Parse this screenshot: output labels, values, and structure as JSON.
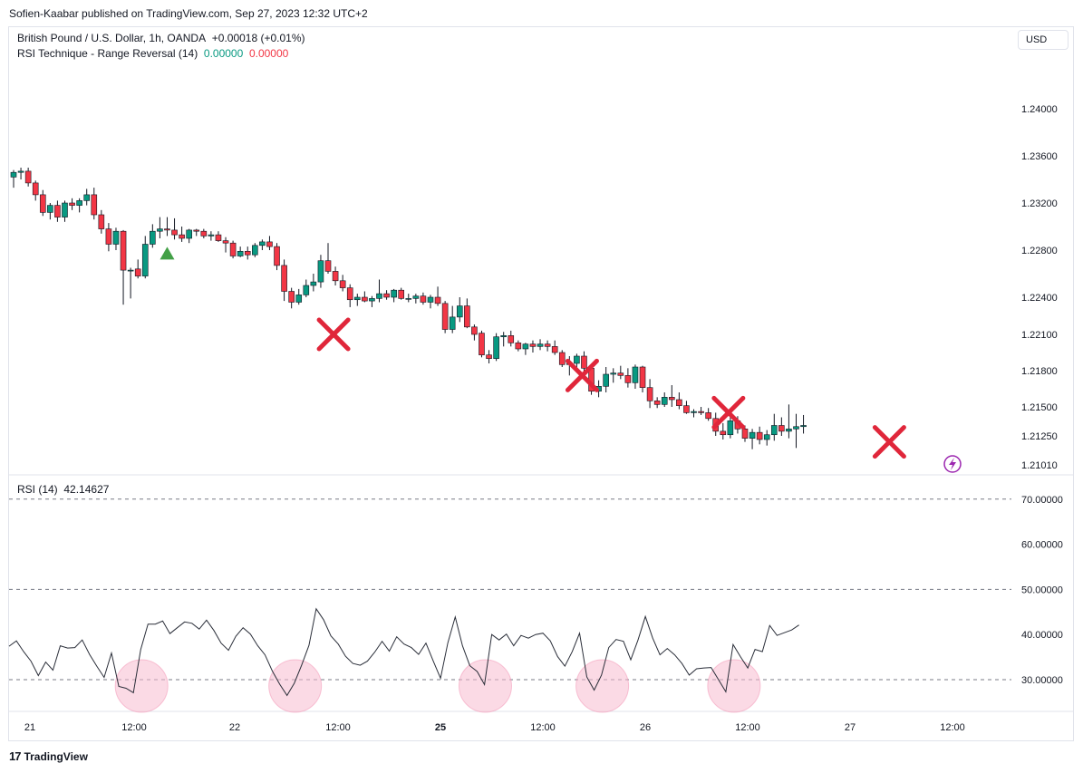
{
  "header": {
    "published_by": "Sofien-Kaabar published on TradingView.com, Sep 27, 2023 12:32 UTC+2"
  },
  "legend": {
    "symbol_line": "British Pound / U.S. Dollar, 1h, OANDA",
    "change": "+0.00018 (+0.01%)",
    "indicator_name": "RSI Technique - Range Reversal (14)",
    "indicator_val1": "0.00000",
    "indicator_val2": "0.00000",
    "rsi_label": "RSI (14)",
    "rsi_value": "42.14627"
  },
  "currency_button": "USD",
  "footer": {
    "brand_mark": "17",
    "brand_name": "TradingView"
  },
  "colors": {
    "up": "#089981",
    "down": "#f23645",
    "marker_x": "#e0263a",
    "marker_up": "#43a047",
    "rsi_line": "#2a2e39",
    "circle_fill": "#f8bbd0"
  },
  "chart_data": [
    {
      "type": "candlestick",
      "symbol": "GBPUSD",
      "timeframe": "1h",
      "y_axis_ticks": [
        "1.24000",
        "1.23600",
        "1.23200",
        "1.22800",
        "1.22400",
        "1.22100",
        "1.21800",
        "1.21500",
        "1.21250",
        "1.21010"
      ],
      "x_axis_ticks": [
        "21",
        "12:00",
        "22",
        "12:00",
        "25",
        "12:00",
        "26",
        "12:00",
        "27",
        "12:00"
      ],
      "candles": [
        [
          1.2342,
          1.2348,
          1.2333,
          1.2346
        ],
        [
          1.2346,
          1.235,
          1.234,
          1.2347
        ],
        [
          1.2347,
          1.235,
          1.2334,
          1.2337
        ],
        [
          1.2337,
          1.2339,
          1.2322,
          1.2327
        ],
        [
          1.2327,
          1.2331,
          1.2309,
          1.2312
        ],
        [
          1.2312,
          1.232,
          1.2306,
          1.2318
        ],
        [
          1.2318,
          1.2322,
          1.2304,
          1.2308
        ],
        [
          1.2308,
          1.2322,
          1.2304,
          1.232
        ],
        [
          1.232,
          1.2324,
          1.2314,
          1.2318
        ],
        [
          1.2318,
          1.2324,
          1.2312,
          1.2322
        ],
        [
          1.2322,
          1.2332,
          1.2318,
          1.2327
        ],
        [
          1.2327,
          1.2333,
          1.2306,
          1.231
        ],
        [
          1.231,
          1.2314,
          1.2294,
          1.2298
        ],
        [
          1.2298,
          1.2303,
          1.2279,
          1.2285
        ],
        [
          1.2285,
          1.2299,
          1.228,
          1.2296
        ],
        [
          1.2296,
          1.2297,
          1.2234,
          1.2263
        ],
        [
          1.2263,
          1.2265,
          1.2239,
          1.2263
        ],
        [
          1.2264,
          1.2272,
          1.2256,
          1.2258
        ],
        [
          1.2258,
          1.2292,
          1.2256,
          1.2285
        ],
        [
          1.2285,
          1.2302,
          1.2282,
          1.2296
        ],
        [
          1.2296,
          1.2308,
          1.229,
          1.2298
        ],
        [
          1.2298,
          1.2308,
          1.2292,
          1.2297
        ],
        [
          1.2297,
          1.2307,
          1.2289,
          1.2293
        ],
        [
          1.2293,
          1.23,
          1.2287,
          1.229
        ],
        [
          1.229,
          1.2298,
          1.2286,
          1.2297
        ],
        [
          1.2297,
          1.2298,
          1.2292,
          1.2296
        ],
        [
          1.2296,
          1.2298,
          1.229,
          1.2292
        ],
        [
          1.2292,
          1.2296,
          1.2288,
          1.2293
        ],
        [
          1.2293,
          1.2296,
          1.2287,
          1.2288
        ],
        [
          1.2288,
          1.2291,
          1.2278,
          1.2286
        ],
        [
          1.2286,
          1.2288,
          1.2273,
          1.2275
        ],
        [
          1.2275,
          1.2283,
          1.2274,
          1.2279
        ],
        [
          1.2279,
          1.2283,
          1.2272,
          1.2276
        ],
        [
          1.2276,
          1.2286,
          1.2274,
          1.2284
        ],
        [
          1.2284,
          1.2289,
          1.228,
          1.2287
        ],
        [
          1.2287,
          1.2292,
          1.228,
          1.2283
        ],
        [
          1.2283,
          1.2286,
          1.2263,
          1.2267
        ],
        [
          1.2267,
          1.2272,
          1.2237,
          1.2245
        ],
        [
          1.2245,
          1.2248,
          1.2231,
          1.2236
        ],
        [
          1.2236,
          1.2247,
          1.2234,
          1.2242
        ],
        [
          1.2242,
          1.2255,
          1.224,
          1.225
        ],
        [
          1.225,
          1.226,
          1.2245,
          1.2253
        ],
        [
          1.2253,
          1.2276,
          1.2248,
          1.2271
        ],
        [
          1.2271,
          1.2286,
          1.226,
          1.2262
        ],
        [
          1.2262,
          1.2266,
          1.225,
          1.2254
        ],
        [
          1.2254,
          1.2259,
          1.2245,
          1.2248
        ],
        [
          1.2248,
          1.2251,
          1.2232,
          1.2238
        ],
        [
          1.2238,
          1.2243,
          1.2233,
          1.224
        ],
        [
          1.224,
          1.2245,
          1.2236,
          1.2237
        ],
        [
          1.2237,
          1.2241,
          1.2232,
          1.2239
        ],
        [
          1.2239,
          1.2255,
          1.2236,
          1.2243
        ],
        [
          1.2243,
          1.2246,
          1.2238,
          1.224
        ],
        [
          1.224,
          1.2247,
          1.2236,
          1.2246
        ],
        [
          1.2246,
          1.2248,
          1.2238,
          1.2239
        ],
        [
          1.2239,
          1.2243,
          1.2236,
          1.2239
        ],
        [
          1.2239,
          1.2243,
          1.2235,
          1.2241
        ],
        [
          1.2241,
          1.2244,
          1.2234,
          1.2236
        ],
        [
          1.2236,
          1.2242,
          1.2231,
          1.224
        ],
        [
          1.224,
          1.2249,
          1.2233,
          1.2235
        ],
        [
          1.2235,
          1.2237,
          1.2211,
          1.2214
        ],
        [
          1.2214,
          1.2233,
          1.2211,
          1.2224
        ],
        [
          1.2224,
          1.224,
          1.222,
          1.2233
        ],
        [
          1.2233,
          1.2239,
          1.2215,
          1.2216
        ],
        [
          1.2216,
          1.2218,
          1.2205,
          1.221
        ],
        [
          1.2211,
          1.2213,
          1.2191,
          1.2193
        ],
        [
          1.2193,
          1.2197,
          1.2186,
          1.219
        ],
        [
          1.219,
          1.2211,
          1.2188,
          1.2208
        ],
        [
          1.2208,
          1.2212,
          1.22,
          1.2209
        ],
        [
          1.2209,
          1.2213,
          1.22,
          1.2203
        ],
        [
          1.2203,
          1.2205,
          1.2196,
          1.2198
        ],
        [
          1.2198,
          1.2203,
          1.2193,
          1.2202
        ],
        [
          1.2202,
          1.2205,
          1.2195,
          1.22
        ],
        [
          1.22,
          1.2206,
          1.2197,
          1.2202
        ],
        [
          1.2202,
          1.2205,
          1.2196,
          1.22
        ],
        [
          1.22,
          1.2205,
          1.2193,
          1.2195
        ],
        [
          1.2195,
          1.2197,
          1.2183,
          1.2185
        ],
        [
          1.2185,
          1.2192,
          1.2176,
          1.2186
        ],
        [
          1.2186,
          1.2194,
          1.218,
          1.2192
        ],
        [
          1.2192,
          1.2196,
          1.2179,
          1.2182
        ],
        [
          1.2182,
          1.2185,
          1.216,
          1.2163
        ],
        [
          1.2163,
          1.2172,
          1.2158,
          1.2167
        ],
        [
          1.2167,
          1.2183,
          1.2162,
          1.2177
        ],
        [
          1.2177,
          1.2182,
          1.217,
          1.2178
        ],
        [
          1.2178,
          1.2184,
          1.2173,
          1.2176
        ],
        [
          1.2176,
          1.2182,
          1.2166,
          1.217
        ],
        [
          1.217,
          1.2185,
          1.2165,
          1.2183
        ],
        [
          1.2183,
          1.2184,
          1.2162,
          1.2166
        ],
        [
          1.2166,
          1.2173,
          1.2149,
          1.2155
        ],
        [
          1.2155,
          1.2158,
          1.2149,
          1.2152
        ],
        [
          1.2152,
          1.2162,
          1.215,
          1.2158
        ],
        [
          1.2158,
          1.2168,
          1.215,
          1.2156
        ],
        [
          1.2156,
          1.2162,
          1.2148,
          1.2151
        ],
        [
          1.2151,
          1.2155,
          1.2144,
          1.2145
        ],
        [
          1.2145,
          1.2148,
          1.2141,
          1.2146
        ],
        [
          1.2146,
          1.215,
          1.2143,
          1.2145
        ],
        [
          1.2145,
          1.2149,
          1.2138,
          1.214
        ],
        [
          1.214,
          1.2145,
          1.2125,
          1.2129
        ],
        [
          1.2129,
          1.2136,
          1.2122,
          1.2126
        ],
        [
          1.2126,
          1.2143,
          1.2123,
          1.2138
        ],
        [
          1.2138,
          1.2142,
          1.2127,
          1.2131
        ],
        [
          1.2131,
          1.2134,
          1.212,
          1.2123
        ],
        [
          1.2123,
          1.2131,
          1.2114,
          1.2128
        ],
        [
          1.2128,
          1.2133,
          1.2118,
          1.2122
        ],
        [
          1.2122,
          1.213,
          1.2117,
          1.2126
        ],
        [
          1.2126,
          1.2144,
          1.2121,
          1.2134
        ],
        [
          1.2134,
          1.2141,
          1.2125,
          1.2129
        ],
        [
          1.2129,
          1.2152,
          1.2123,
          1.2131
        ],
        [
          1.2131,
          1.2144,
          1.2115,
          1.2133
        ],
        [
          1.2133,
          1.2143,
          1.2127,
          1.2134
        ]
      ],
      "buy_signals": [
        21
      ],
      "cross_markers": [
        {
          "index": 44,
          "price": 1.221
        },
        {
          "index": 78,
          "price": 1.2176
        },
        {
          "index": 98,
          "price": 1.2145
        },
        {
          "index": 120,
          "price": 1.212
        }
      ]
    },
    {
      "type": "line",
      "name": "RSI (14)",
      "y_axis_ticks": [
        "70.00000",
        "60.00000",
        "50.00000",
        "40.00000",
        "30.00000"
      ],
      "levels": [
        70,
        50,
        30
      ],
      "values": [
        37.4,
        38.6,
        36.2,
        34.1,
        30.9,
        33.9,
        32.1,
        37.5,
        37.0,
        37.1,
        38.8,
        35.6,
        33.0,
        30.5,
        35.9,
        28.5,
        28.1,
        27.1,
        36.7,
        42.3,
        42.3,
        43.0,
        40.2,
        41.5,
        42.8,
        42.5,
        41.2,
        43.2,
        40.9,
        38.1,
        36.5,
        39.6,
        41.5,
        40.1,
        37.5,
        35.5,
        31.9,
        29.0,
        26.5,
        29.2,
        33.2,
        37.6,
        45.7,
        43.3,
        39.7,
        37.9,
        35.2,
        33.6,
        33.2,
        34.1,
        36.1,
        38.5,
        36.3,
        39.5,
        37.9,
        37.1,
        35.6,
        38.1,
        34.1,
        30.3,
        38.2,
        43.9,
        37.5,
        33.1,
        31.8,
        28.9,
        40.0,
        38.8,
        40.1,
        37.5,
        39.8,
        39.2,
        40.0,
        40.3,
        38.6,
        35.1,
        33.0,
        36.2,
        40.3,
        30.6,
        27.7,
        31.0,
        37.1,
        38.9,
        38.5,
        34.4,
        38.8,
        44.0,
        39.2,
        35.5,
        36.9,
        35.5,
        33.6,
        31.0,
        32.4,
        32.6,
        32.7,
        30.0,
        27.3,
        37.8,
        35.1,
        32.6,
        36.7,
        36.2,
        42.0,
        39.8,
        40.4,
        41.0,
        42.1
      ],
      "highlight_indices": [
        17,
        38,
        64,
        80,
        98
      ]
    }
  ]
}
